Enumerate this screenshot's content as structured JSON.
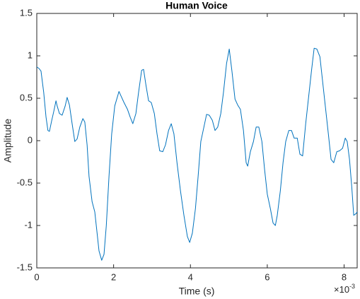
{
  "chart_data": {
    "type": "line",
    "title": "Human Voice",
    "x_label": "Time (s)",
    "y_label": "Amplitude",
    "x_exponent": {
      "base": "×10",
      "power": "-3"
    },
    "x": [
      0,
      0.06,
      0.11,
      0.18,
      0.24,
      0.29,
      0.33,
      0.39,
      0.44,
      0.5,
      0.53,
      0.59,
      0.66,
      0.74,
      0.79,
      0.85,
      0.92,
      0.99,
      1.05,
      1.12,
      1.2,
      1.25,
      1.31,
      1.36,
      1.44,
      1.51,
      1.57,
      1.62,
      1.69,
      1.75,
      1.81,
      1.88,
      1.95,
      2.03,
      2.14,
      2.19,
      2.27,
      2.36,
      2.43,
      2.5,
      2.58,
      2.65,
      2.73,
      2.78,
      2.84,
      2.91,
      2.98,
      3.06,
      3.13,
      3.2,
      3.28,
      3.35,
      3.43,
      3.5,
      3.57,
      3.65,
      3.74,
      3.83,
      3.92,
      3.98,
      4.05,
      4.13,
      4.2,
      4.27,
      4.35,
      4.42,
      4.49,
      4.57,
      4.64,
      4.71,
      4.79,
      4.86,
      4.94,
      5.01,
      5.08,
      5.16,
      5.23,
      5.3,
      5.38,
      5.45,
      5.49,
      5.56,
      5.64,
      5.71,
      5.78,
      5.86,
      5.93,
      6.0,
      6.08,
      6.15,
      6.21,
      6.26,
      6.34,
      6.41,
      6.48,
      6.56,
      6.63,
      6.7,
      6.78,
      6.85,
      6.92,
      7.0,
      7.07,
      7.15,
      7.22,
      7.29,
      7.37,
      7.44,
      7.51,
      7.59,
      7.66,
      7.73,
      7.81,
      7.88,
      7.96,
      8.03,
      8.08,
      8.14,
      8.2,
      8.25,
      8.31,
      8.34
    ],
    "series": [
      {
        "name": "Human Voice",
        "color": "#0072bd",
        "values": [
          0.87,
          0.85,
          0.82,
          0.57,
          0.28,
          0.12,
          0.11,
          0.24,
          0.34,
          0.47,
          0.41,
          0.32,
          0.3,
          0.41,
          0.51,
          0.42,
          0.2,
          -0.01,
          0.02,
          0.16,
          0.26,
          0.22,
          -0.05,
          -0.42,
          -0.72,
          -0.84,
          -1.09,
          -1.3,
          -1.41,
          -1.34,
          -1.0,
          -0.42,
          0.08,
          0.41,
          0.58,
          0.53,
          0.45,
          0.37,
          0.28,
          0.2,
          0.32,
          0.57,
          0.83,
          0.84,
          0.66,
          0.47,
          0.45,
          0.32,
          0.08,
          -0.12,
          -0.13,
          -0.05,
          0.12,
          0.2,
          0.08,
          -0.26,
          -0.59,
          -0.88,
          -1.13,
          -1.2,
          -1.09,
          -0.8,
          -0.42,
          -0.01,
          0.16,
          0.31,
          0.3,
          0.24,
          0.12,
          0.16,
          0.32,
          0.57,
          0.91,
          1.08,
          0.82,
          0.49,
          0.42,
          0.37,
          0.12,
          -0.26,
          -0.3,
          -0.13,
          -0.01,
          0.16,
          0.16,
          -0.01,
          -0.34,
          -0.63,
          -0.8,
          -0.97,
          -1.0,
          -0.88,
          -0.59,
          -0.26,
          -0.01,
          0.12,
          0.12,
          0.03,
          0.03,
          -0.16,
          -0.18,
          0.2,
          0.49,
          0.82,
          1.09,
          1.08,
          0.99,
          0.7,
          0.41,
          0.08,
          -0.22,
          -0.26,
          -0.13,
          -0.12,
          -0.09,
          0.03,
          -0.01,
          -0.22,
          -0.55,
          -0.88,
          -0.86,
          -0.84
        ]
      }
    ],
    "xlim": [
      0,
      8.34
    ],
    "xticks": [
      0,
      2,
      4,
      6,
      8
    ],
    "ylim": [
      -1.5,
      1.5
    ],
    "yticks": [
      -1.5,
      -1,
      -0.5,
      0,
      0.5,
      1,
      1.5
    ],
    "grid": false
  }
}
